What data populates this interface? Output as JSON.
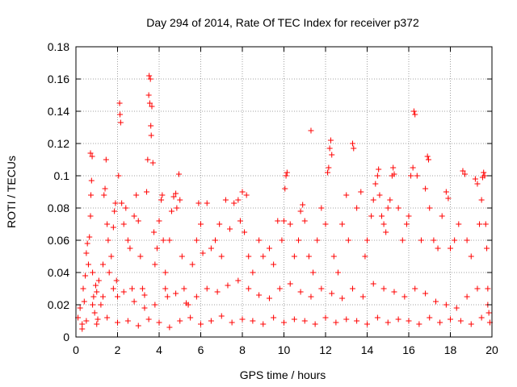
{
  "chart_data": {
    "type": "scatter",
    "title": "Day 294 of 2014, Rate Of TEC Index for receiver p372",
    "xlabel": "GPS time / hours",
    "ylabel": "ROTI / TECUs",
    "xlim": [
      0,
      20
    ],
    "ylim": [
      0,
      0.18
    ],
    "xticks": [
      0,
      2,
      4,
      6,
      8,
      10,
      12,
      14,
      16,
      18,
      20
    ],
    "xtick_labels": [
      "0",
      "2",
      "4",
      "6",
      "8",
      "10",
      "12",
      "14",
      "16",
      "18",
      "20"
    ],
    "yticks": [
      0,
      0.02,
      0.04,
      0.06,
      0.08,
      0.1,
      0.12,
      0.14,
      0.16,
      0.18
    ],
    "ytick_labels": [
      "0",
      "0.02",
      "0.04",
      "0.06",
      "0.08",
      "0.1",
      "0.12",
      "0.14",
      "0.16",
      "0.18"
    ],
    "grid": true,
    "marker": "+",
    "marker_color": "#ff0000",
    "series": [
      {
        "name": "ROTI",
        "points": [
          [
            0.1,
            0.012
          ],
          [
            0.2,
            0.018
          ],
          [
            0.3,
            0.008
          ],
          [
            0.35,
            0.03
          ],
          [
            0.4,
            0.022
          ],
          [
            0.45,
            0.038
          ],
          [
            0.5,
            0.052
          ],
          [
            0.55,
            0.058
          ],
          [
            0.6,
            0.045
          ],
          [
            0.65,
            0.062
          ],
          [
            0.7,
            0.075
          ],
          [
            0.72,
            0.088
          ],
          [
            0.75,
            0.097
          ],
          [
            0.7,
            0.114
          ],
          [
            0.78,
            0.112
          ],
          [
            0.8,
            0.04
          ],
          [
            0.85,
            0.025
          ],
          [
            0.9,
            0.015
          ],
          [
            0.95,
            0.032
          ],
          [
            1.0,
            0.028
          ],
          [
            1.05,
            0.011
          ],
          [
            1.1,
            0.035
          ],
          [
            1.2,
            0.02
          ],
          [
            1.3,
            0.045
          ],
          [
            1.35,
            0.088
          ],
          [
            1.4,
            0.092
          ],
          [
            1.45,
            0.11
          ],
          [
            1.5,
            0.07
          ],
          [
            1.55,
            0.06
          ],
          [
            1.6,
            0.04
          ],
          [
            1.7,
            0.05
          ],
          [
            1.8,
            0.068
          ],
          [
            1.85,
            0.078
          ],
          [
            1.9,
            0.083
          ],
          [
            1.95,
            0.035
          ],
          [
            2.0,
            0.025
          ],
          [
            2.05,
            0.1
          ],
          [
            2.1,
            0.145
          ],
          [
            2.12,
            0.138
          ],
          [
            2.15,
            0.133
          ],
          [
            2.2,
            0.083
          ],
          [
            2.3,
            0.07
          ],
          [
            2.4,
            0.08
          ],
          [
            2.5,
            0.06
          ],
          [
            2.6,
            0.055
          ],
          [
            2.7,
            0.03
          ],
          [
            2.8,
            0.075
          ],
          [
            2.9,
            0.088
          ],
          [
            3.0,
            0.072
          ],
          [
            3.1,
            0.05
          ],
          [
            3.2,
            0.03
          ],
          [
            3.3,
            0.018
          ],
          [
            3.4,
            0.09
          ],
          [
            3.45,
            0.11
          ],
          [
            3.5,
            0.15
          ],
          [
            3.52,
            0.162
          ],
          [
            3.55,
            0.145
          ],
          [
            3.58,
            0.16
          ],
          [
            3.6,
            0.131
          ],
          [
            3.62,
            0.125
          ],
          [
            3.65,
            0.143
          ],
          [
            3.7,
            0.108
          ],
          [
            3.75,
            0.065
          ],
          [
            3.8,
            0.045
          ],
          [
            3.9,
            0.055
          ],
          [
            4.0,
            0.072
          ],
          [
            4.1,
            0.085
          ],
          [
            4.15,
            0.088
          ],
          [
            4.2,
            0.06
          ],
          [
            4.3,
            0.04
          ],
          [
            4.4,
            0.025
          ],
          [
            4.5,
            0.06
          ],
          [
            4.6,
            0.078
          ],
          [
            4.7,
            0.087
          ],
          [
            4.8,
            0.089
          ],
          [
            4.85,
            0.08
          ],
          [
            4.95,
            0.101
          ],
          [
            5.0,
            0.085
          ],
          [
            5.1,
            0.05
          ],
          [
            5.2,
            0.03
          ],
          [
            5.4,
            0.02
          ],
          [
            5.6,
            0.045
          ],
          [
            5.8,
            0.06
          ],
          [
            5.9,
            0.083
          ],
          [
            6.0,
            0.07
          ],
          [
            6.1,
            0.052
          ],
          [
            6.3,
            0.083
          ],
          [
            6.5,
            0.055
          ],
          [
            6.7,
            0.06
          ],
          [
            6.9,
            0.07
          ],
          [
            7.0,
            0.05
          ],
          [
            7.2,
            0.085
          ],
          [
            7.4,
            0.067
          ],
          [
            7.6,
            0.083
          ],
          [
            7.8,
            0.085
          ],
          [
            7.9,
            0.072
          ],
          [
            8.0,
            0.09
          ],
          [
            8.1,
            0.065
          ],
          [
            8.2,
            0.088
          ],
          [
            8.3,
            0.05
          ],
          [
            8.5,
            0.04
          ],
          [
            8.8,
            0.06
          ],
          [
            9.0,
            0.05
          ],
          [
            9.3,
            0.055
          ],
          [
            9.5,
            0.045
          ],
          [
            9.7,
            0.072
          ],
          [
            9.9,
            0.06
          ],
          [
            10.0,
            0.072
          ],
          [
            10.05,
            0.092
          ],
          [
            10.1,
            0.1
          ],
          [
            10.15,
            0.102
          ],
          [
            10.3,
            0.07
          ],
          [
            10.5,
            0.05
          ],
          [
            10.7,
            0.06
          ],
          [
            10.8,
            0.078
          ],
          [
            10.9,
            0.082
          ],
          [
            11.0,
            0.072
          ],
          [
            11.2,
            0.05
          ],
          [
            11.3,
            0.128
          ],
          [
            11.4,
            0.04
          ],
          [
            11.6,
            0.06
          ],
          [
            11.8,
            0.08
          ],
          [
            12.0,
            0.07
          ],
          [
            12.1,
            0.102
          ],
          [
            12.15,
            0.105
          ],
          [
            12.2,
            0.117
          ],
          [
            12.25,
            0.122
          ],
          [
            12.3,
            0.113
          ],
          [
            12.4,
            0.05
          ],
          [
            12.6,
            0.04
          ],
          [
            12.8,
            0.07
          ],
          [
            13.0,
            0.088
          ],
          [
            13.1,
            0.06
          ],
          [
            13.3,
            0.12
          ],
          [
            13.35,
            0.117
          ],
          [
            13.5,
            0.08
          ],
          [
            13.7,
            0.09
          ],
          [
            13.9,
            0.05
          ],
          [
            14.0,
            0.06
          ],
          [
            14.2,
            0.075
          ],
          [
            14.3,
            0.085
          ],
          [
            14.4,
            0.095
          ],
          [
            14.5,
            0.1
          ],
          [
            14.55,
            0.104
          ],
          [
            14.6,
            0.088
          ],
          [
            14.7,
            0.075
          ],
          [
            14.8,
            0.07
          ],
          [
            14.9,
            0.065
          ],
          [
            15.0,
            0.08
          ],
          [
            15.1,
            0.085
          ],
          [
            15.2,
            0.1
          ],
          [
            15.25,
            0.105
          ],
          [
            15.3,
            0.101
          ],
          [
            15.5,
            0.08
          ],
          [
            15.7,
            0.06
          ],
          [
            15.9,
            0.07
          ],
          [
            16.0,
            0.075
          ],
          [
            16.1,
            0.1
          ],
          [
            16.2,
            0.105
          ],
          [
            16.25,
            0.14
          ],
          [
            16.3,
            0.138
          ],
          [
            16.4,
            0.1
          ],
          [
            16.6,
            0.06
          ],
          [
            16.8,
            0.092
          ],
          [
            16.9,
            0.112
          ],
          [
            16.95,
            0.11
          ],
          [
            17.0,
            0.08
          ],
          [
            17.2,
            0.06
          ],
          [
            17.4,
            0.055
          ],
          [
            17.6,
            0.075
          ],
          [
            17.8,
            0.09
          ],
          [
            17.9,
            0.086
          ],
          [
            18.0,
            0.055
          ],
          [
            18.2,
            0.06
          ],
          [
            18.4,
            0.07
          ],
          [
            18.6,
            0.103
          ],
          [
            18.7,
            0.101
          ],
          [
            18.8,
            0.06
          ],
          [
            19.0,
            0.05
          ],
          [
            19.2,
            0.098
          ],
          [
            19.3,
            0.095
          ],
          [
            19.4,
            0.07
          ],
          [
            19.5,
            0.085
          ],
          [
            19.55,
            0.099
          ],
          [
            19.6,
            0.102
          ],
          [
            19.65,
            0.1
          ],
          [
            19.7,
            0.07
          ],
          [
            19.75,
            0.055
          ],
          [
            19.8,
            0.03
          ],
          [
            19.85,
            0.015
          ],
          [
            0.5,
            0.01
          ],
          [
            1.0,
            0.008
          ],
          [
            1.5,
            0.012
          ],
          [
            2.0,
            0.009
          ],
          [
            2.5,
            0.01
          ],
          [
            3.0,
            0.007
          ],
          [
            3.5,
            0.011
          ],
          [
            4.0,
            0.009
          ],
          [
            4.5,
            0.006
          ],
          [
            5.0,
            0.01
          ],
          [
            5.5,
            0.012
          ],
          [
            6.0,
            0.008
          ],
          [
            6.5,
            0.01
          ],
          [
            7.0,
            0.013
          ],
          [
            7.5,
            0.009
          ],
          [
            8.0,
            0.011
          ],
          [
            8.5,
            0.01
          ],
          [
            9.0,
            0.008
          ],
          [
            9.5,
            0.012
          ],
          [
            10.0,
            0.009
          ],
          [
            10.5,
            0.011
          ],
          [
            11.0,
            0.01
          ],
          [
            11.5,
            0.008
          ],
          [
            12.0,
            0.012
          ],
          [
            12.5,
            0.009
          ],
          [
            13.0,
            0.011
          ],
          [
            13.5,
            0.01
          ],
          [
            14.0,
            0.008
          ],
          [
            14.5,
            0.012
          ],
          [
            15.0,
            0.009
          ],
          [
            15.5,
            0.011
          ],
          [
            16.0,
            0.01
          ],
          [
            16.5,
            0.008
          ],
          [
            17.0,
            0.012
          ],
          [
            17.5,
            0.009
          ],
          [
            18.0,
            0.011
          ],
          [
            18.5,
            0.01
          ],
          [
            19.0,
            0.008
          ],
          [
            19.5,
            0.012
          ],
          [
            19.9,
            0.009
          ],
          [
            0.8,
            0.02
          ],
          [
            1.3,
            0.025
          ],
          [
            1.8,
            0.03
          ],
          [
            2.3,
            0.028
          ],
          [
            2.8,
            0.022
          ],
          [
            3.3,
            0.026
          ],
          [
            3.8,
            0.02
          ],
          [
            4.3,
            0.03
          ],
          [
            4.8,
            0.027
          ],
          [
            5.3,
            0.021
          ],
          [
            5.8,
            0.025
          ],
          [
            6.3,
            0.03
          ],
          [
            6.8,
            0.028
          ],
          [
            7.3,
            0.032
          ],
          [
            7.8,
            0.035
          ],
          [
            8.3,
            0.03
          ],
          [
            8.8,
            0.026
          ],
          [
            9.3,
            0.024
          ],
          [
            9.8,
            0.03
          ],
          [
            10.3,
            0.033
          ],
          [
            10.8,
            0.028
          ],
          [
            11.3,
            0.025
          ],
          [
            11.8,
            0.03
          ],
          [
            12.3,
            0.027
          ],
          [
            12.8,
            0.024
          ],
          [
            13.3,
            0.03
          ],
          [
            13.8,
            0.025
          ],
          [
            14.3,
            0.033
          ],
          [
            14.8,
            0.03
          ],
          [
            15.3,
            0.028
          ],
          [
            15.8,
            0.025
          ],
          [
            16.3,
            0.03
          ],
          [
            16.8,
            0.027
          ],
          [
            17.3,
            0.022
          ],
          [
            17.8,
            0.02
          ],
          [
            18.3,
            0.018
          ],
          [
            18.8,
            0.025
          ],
          [
            19.3,
            0.03
          ],
          [
            19.8,
            0.02
          ],
          [
            0.3,
            0.005
          ]
        ]
      }
    ]
  }
}
